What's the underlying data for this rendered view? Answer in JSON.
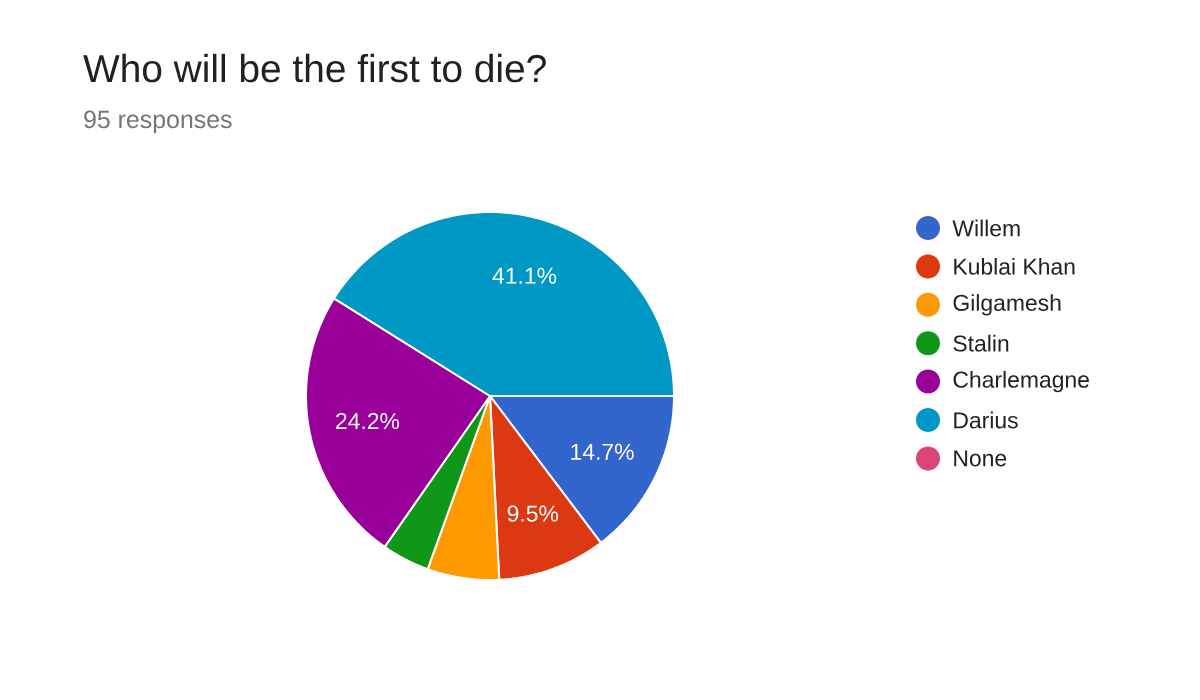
{
  "chart_data": {
    "type": "pie",
    "title": "Who will be the first to die?",
    "subtitle": "95 responses",
    "categories": [
      "Willem",
      "Kublai Khan",
      "Gilgamesh",
      "Stalin",
      "Charlemagne",
      "Darius",
      "None"
    ],
    "values": [
      14.7,
      9.5,
      6.3,
      4.2,
      24.2,
      41.1,
      0
    ],
    "colors": [
      "#3366cc",
      "#dc3912",
      "#ff9900",
      "#109618",
      "#990099",
      "#0099c6",
      "#dd4477"
    ],
    "value_labels": [
      "14.7%",
      "9.5%",
      null,
      null,
      "24.2%",
      "41.1%",
      null
    ],
    "legend": "right"
  }
}
